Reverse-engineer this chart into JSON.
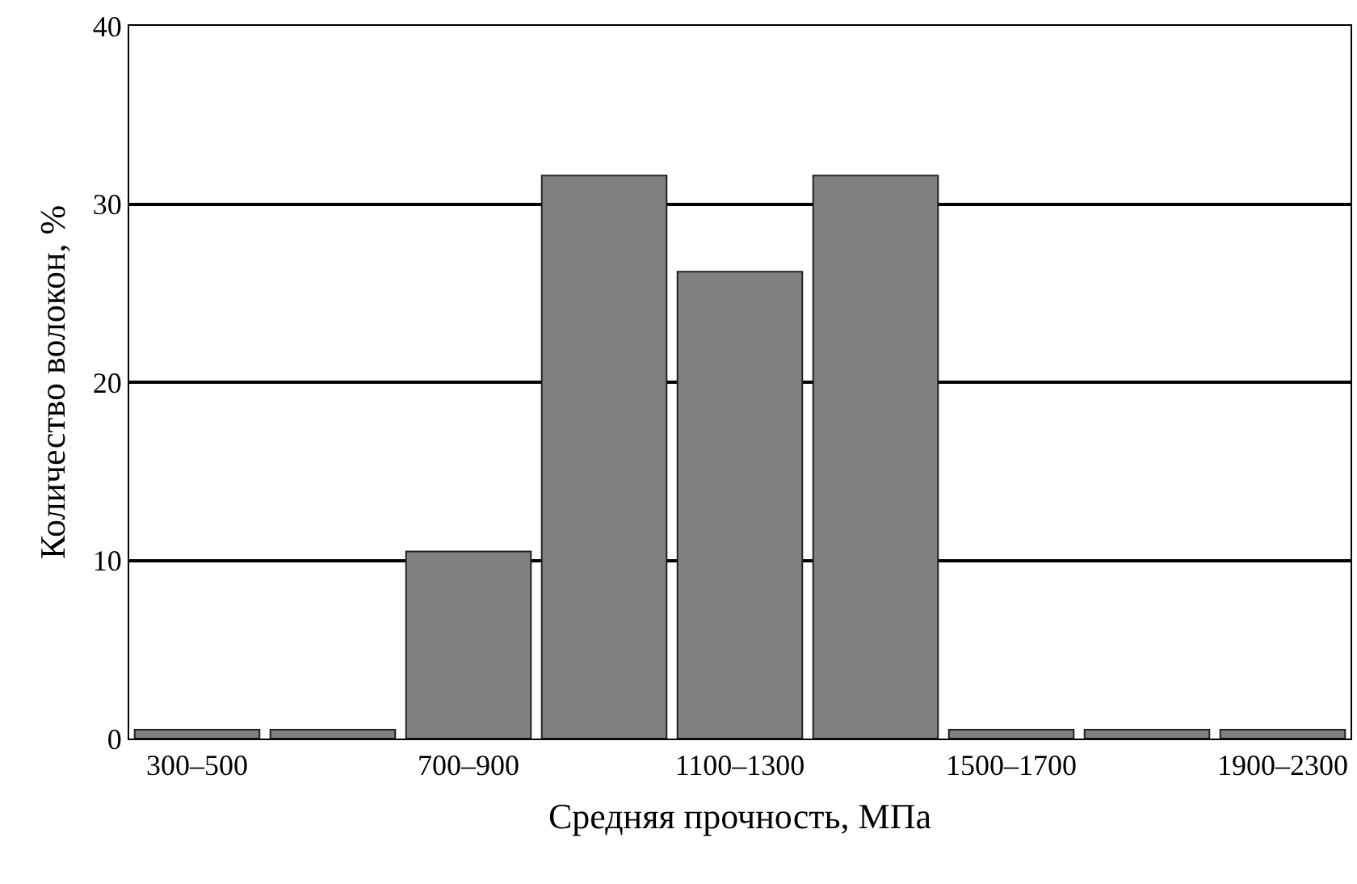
{
  "chart_data": {
    "type": "bar",
    "xlabel": "Средняя прочность, МПа",
    "ylabel": "Количество волокон, %",
    "categories": [
      "300–500",
      null,
      "700–900",
      null,
      "1100–1300",
      null,
      "1500–1700",
      null,
      "1900–2300"
    ],
    "values": [
      0.5,
      0.5,
      10.5,
      31.6,
      26.2,
      31.6,
      0.5,
      0.5,
      0.5
    ],
    "color": "#808080",
    "ylim": [
      0,
      40
    ],
    "yticks": [
      0,
      10,
      20,
      30,
      40
    ],
    "grid": "y"
  }
}
